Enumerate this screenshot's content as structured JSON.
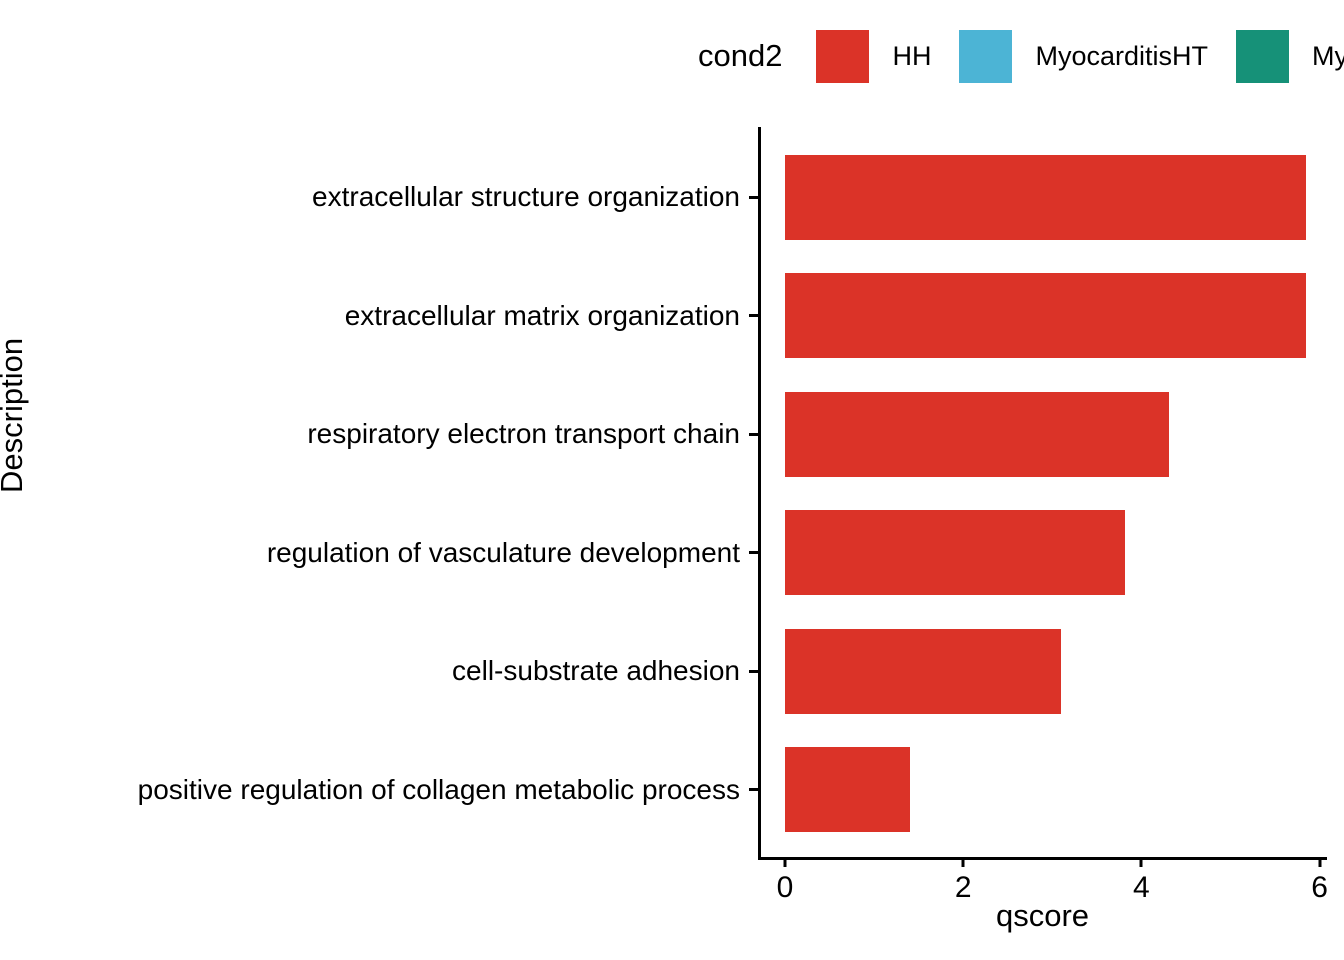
{
  "figure": {
    "background": "#ffffff"
  },
  "legend": {
    "title": "cond2",
    "items": [
      {
        "label": "HH",
        "color": "#DB3328"
      },
      {
        "label": "MyocarditisHT",
        "color": "#4CB4D5"
      },
      {
        "label": "Myocarditis",
        "color": "#169178",
        "truncated_at_edge": true
      }
    ]
  },
  "chart_data": {
    "type": "bar",
    "orientation": "horizontal",
    "title": "",
    "xlabel": "qscore",
    "ylabel": "Description",
    "categories": [
      "extracellular structure organization",
      "extracellular matrix organization",
      "respiratory electron transport chain",
      "regulation of vasculature development",
      "cell-substrate adhesion",
      "positive regulation of collagen metabolic process"
    ],
    "series": [
      {
        "name": "HH",
        "color": "#DB3328",
        "values": [
          5.85,
          5.85,
          4.31,
          3.82,
          3.1,
          1.4
        ]
      }
    ],
    "xlim": [
      0,
      6.15
    ],
    "xticks": [
      0,
      2,
      4,
      6
    ],
    "grid": false,
    "legend_position": "top-right",
    "bar_color_key": "cond2"
  }
}
